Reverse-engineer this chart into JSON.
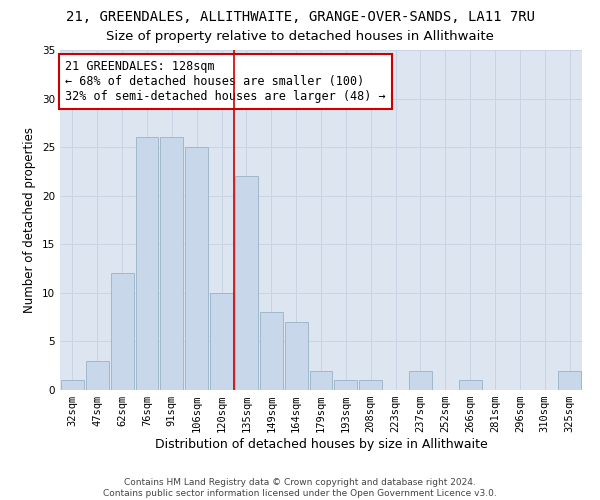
{
  "title": "21, GREENDALES, ALLITHWAITE, GRANGE-OVER-SANDS, LA11 7RU",
  "subtitle": "Size of property relative to detached houses in Allithwaite",
  "xlabel": "Distribution of detached houses by size in Allithwaite",
  "ylabel": "Number of detached properties",
  "categories": [
    "32sqm",
    "47sqm",
    "62sqm",
    "76sqm",
    "91sqm",
    "106sqm",
    "120sqm",
    "135sqm",
    "149sqm",
    "164sqm",
    "179sqm",
    "193sqm",
    "208sqm",
    "223sqm",
    "237sqm",
    "252sqm",
    "266sqm",
    "281sqm",
    "296sqm",
    "310sqm",
    "325sqm"
  ],
  "values": [
    1,
    3,
    12,
    26,
    26,
    25,
    10,
    22,
    8,
    7,
    2,
    1,
    1,
    0,
    2,
    0,
    1,
    0,
    0,
    0,
    2
  ],
  "bar_color": "#c8d8ea",
  "bar_edge_color": "#a0b8cc",
  "vline_x": 6.5,
  "vline_color": "#cc0000",
  "annotation_text": "21 GREENDALES: 128sqm\n← 68% of detached houses are smaller (100)\n32% of semi-detached houses are larger (48) →",
  "annotation_box_color": "#ffffff",
  "annotation_box_edge": "#cc0000",
  "ylim": [
    0,
    35
  ],
  "yticks": [
    0,
    5,
    10,
    15,
    20,
    25,
    30,
    35
  ],
  "grid_color": "#c8d4e4",
  "background_color": "#dde6f0",
  "footer": "Contains HM Land Registry data © Crown copyright and database right 2024.\nContains public sector information licensed under the Open Government Licence v3.0.",
  "title_fontsize": 10,
  "subtitle_fontsize": 9.5,
  "xlabel_fontsize": 9,
  "ylabel_fontsize": 8.5,
  "tick_fontsize": 7.5,
  "annotation_fontsize": 8.5,
  "footer_fontsize": 6.5
}
